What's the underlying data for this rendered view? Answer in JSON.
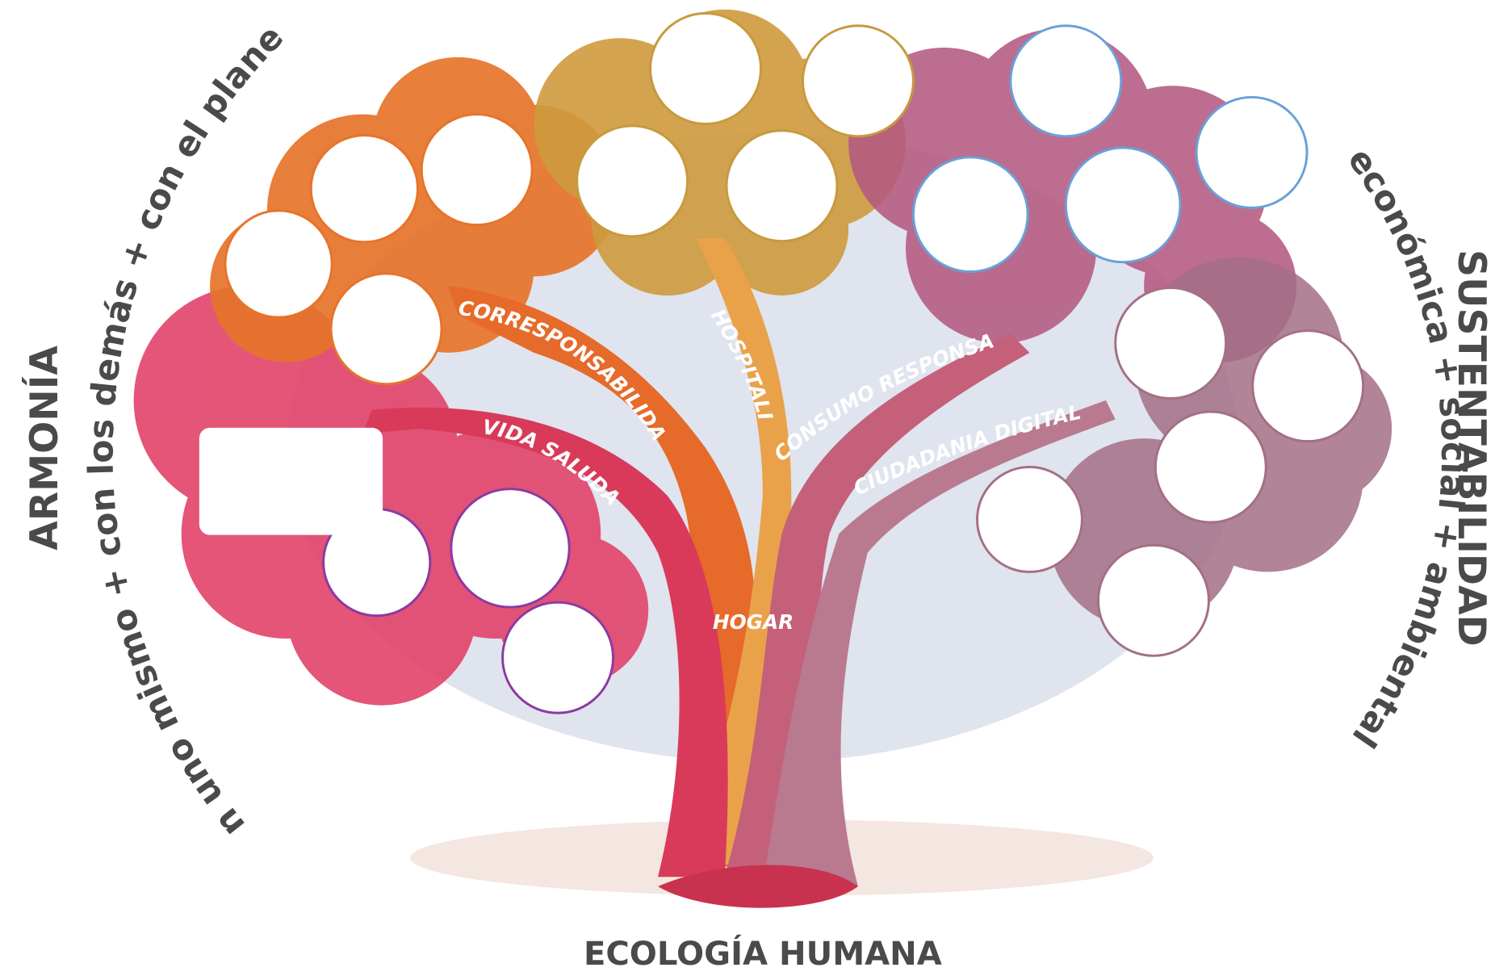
{
  "left_label": {
    "title": "ARMONÍA",
    "subtitle": "con uno mismo + con los demás + con el planeta"
  },
  "right_label": {
    "title": "SUSTENTABILIDAD",
    "subtitle": "económica + social + ambiental"
  },
  "footer": "ECOLOGÍA HUMANA",
  "tree": {
    "trunk": "HOGAR",
    "branches": [
      "CORRESPONSABILIDAD FAMILIAR",
      "HOSPITALIDAD",
      "VIDA SALUDABLE",
      "CONSUMO RESPONSABLE",
      "CIUDADANIA DIGITAL"
    ]
  }
}
